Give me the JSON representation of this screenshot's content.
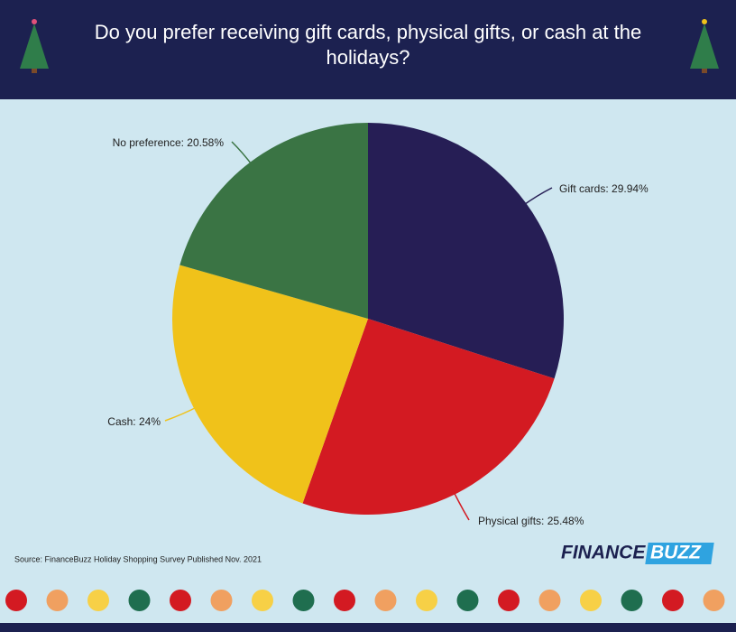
{
  "chart_data": {
    "type": "pie",
    "title": "Do you prefer receiving gift cards, physical gifts, or cash at the holidays?",
    "values": [
      29.94,
      25.48,
      24,
      20.58
    ],
    "value_labels": [
      "Gift cards: 29.94%",
      "Physical gifts: 25.48%",
      "Cash: 24%",
      "No preference: 20.58%"
    ],
    "colors": [
      "#261e55",
      "#d31a22",
      "#f0c21a",
      "#3a7444"
    ],
    "source": "Source: FinanceBuzz Holiday Shopping Survey Published Nov. 2021",
    "logo": [
      "FINANCE",
      "BUZZ"
    ]
  }
}
